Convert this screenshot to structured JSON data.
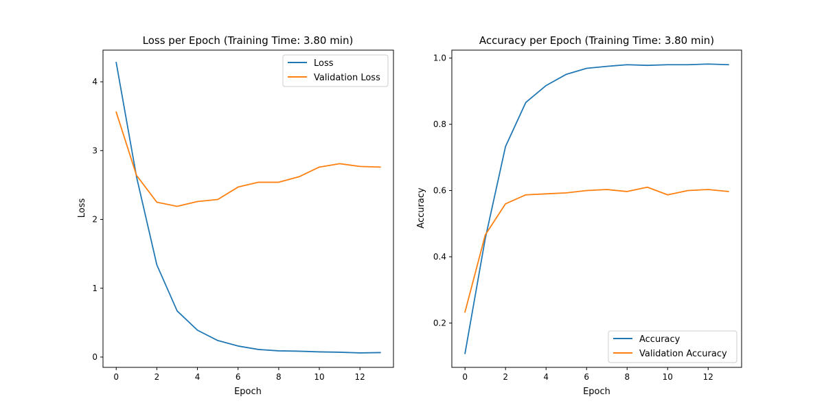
{
  "chart_data": [
    {
      "type": "line",
      "title": "Loss per Epoch (Training Time: 3.80 min)",
      "xlabel": "Epoch",
      "ylabel": "Loss",
      "xlim": [
        -0.65,
        13.65
      ],
      "ylim": [
        -0.15,
        4.46
      ],
      "xticks": [
        0,
        2,
        4,
        6,
        8,
        10,
        12
      ],
      "xtick_labels": [
        "0",
        "2",
        "4",
        "6",
        "8",
        "10",
        "12"
      ],
      "yticks": [
        0,
        1,
        2,
        3,
        4
      ],
      "ytick_labels": [
        "0",
        "1",
        "2",
        "3",
        "4"
      ],
      "grid": false,
      "legend_position": "top-right",
      "x": [
        0,
        1,
        2,
        3,
        4,
        5,
        6,
        7,
        8,
        9,
        10,
        11,
        12,
        13
      ],
      "series": [
        {
          "name": "Loss",
          "color": "#1f77b4",
          "values": [
            4.28,
            2.62,
            1.34,
            0.67,
            0.39,
            0.24,
            0.16,
            0.11,
            0.09,
            0.085,
            0.075,
            0.07,
            0.06,
            0.065
          ]
        },
        {
          "name": "Validation Loss",
          "color": "#ff7f0e",
          "values": [
            3.56,
            2.64,
            2.25,
            2.19,
            2.26,
            2.29,
            2.47,
            2.54,
            2.54,
            2.62,
            2.76,
            2.81,
            2.77,
            2.76
          ]
        }
      ]
    },
    {
      "type": "line",
      "title": "Accuracy per Epoch (Training Time: 3.80 min)",
      "xlabel": "Epoch",
      "ylabel": "Accuracy",
      "xlim": [
        -0.65,
        13.65
      ],
      "ylim": [
        0.066,
        1.024
      ],
      "xticks": [
        0,
        2,
        4,
        6,
        8,
        10,
        12
      ],
      "xtick_labels": [
        "0",
        "2",
        "4",
        "6",
        "8",
        "10",
        "12"
      ],
      "yticks": [
        0.2,
        0.4,
        0.6,
        0.8,
        1.0
      ],
      "ytick_labels": [
        "0.2",
        "0.4",
        "0.6",
        "0.8",
        "1.0"
      ],
      "grid": false,
      "legend_position": "bottom-right",
      "x": [
        0,
        1,
        2,
        3,
        4,
        5,
        6,
        7,
        8,
        9,
        10,
        11,
        12,
        13
      ],
      "series": [
        {
          "name": "Accuracy",
          "color": "#1f77b4",
          "values": [
            0.108,
            0.455,
            0.733,
            0.866,
            0.917,
            0.951,
            0.969,
            0.975,
            0.98,
            0.978,
            0.98,
            0.98,
            0.982,
            0.98
          ]
        },
        {
          "name": "Validation Accuracy",
          "color": "#ff7f0e",
          "values": [
            0.233,
            0.466,
            0.56,
            0.587,
            0.59,
            0.593,
            0.6,
            0.603,
            0.597,
            0.61,
            0.587,
            0.6,
            0.603,
            0.597
          ]
        }
      ]
    }
  ]
}
